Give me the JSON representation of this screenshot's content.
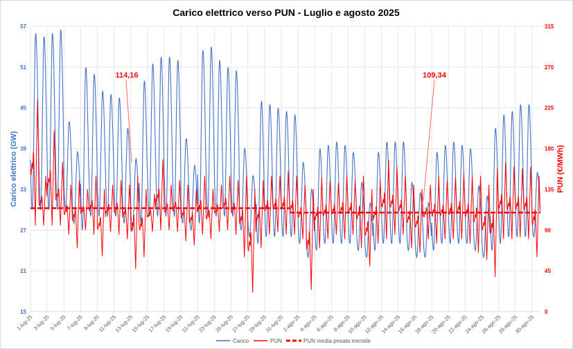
{
  "chart_data": {
    "type": "line",
    "title": "Carico elettrico verso PUN - Luglio e agosto 2025",
    "ylabel_left": "Carico elettrico (GW)",
    "ylabel_right": "PUN (€/MWh)",
    "ylim_left": [
      15,
      57
    ],
    "yticks_left": [
      15,
      21,
      27,
      33,
      39,
      45,
      51,
      57
    ],
    "ylim_right": [
      0,
      315
    ],
    "yticks_right": [
      0,
      45,
      90,
      135,
      180,
      225,
      270,
      315
    ],
    "grid": true,
    "legend_placement": "bottom",
    "x_tick_labels": [
      "1-lug-25",
      "3-lug-25",
      "5-lug-25",
      "7-lug-25",
      "9-lug-25",
      "11-lug-25",
      "13-lug-25",
      "15-lug-25",
      "17-lug-25",
      "19-lug-25",
      "21-lug-25",
      "23-lug-25",
      "25-lug-25",
      "27-lug-25",
      "29-lug-25",
      "31-lug-25",
      "2-ago-25",
      "4-ago-25",
      "6-ago-25",
      "8-ago-25",
      "10-ago-25",
      "12-ago-25",
      "14-ago-25",
      "16-ago-25",
      "18-ago-25",
      "20-ago-25",
      "22-ago-25",
      "24-ago-25",
      "26-ago-25",
      "28-ago-25",
      "30-ago-25"
    ],
    "series": [
      {
        "name": "Carico",
        "axis": "left",
        "color": "#4472C4",
        "daily_max": [
          56,
          55.5,
          56,
          56.5,
          43,
          38.5,
          51,
          50,
          47.5,
          47,
          46.5,
          42,
          37.5,
          49,
          51.5,
          52.5,
          52.5,
          52,
          40.5,
          36.5,
          53.5,
          54,
          52,
          51,
          50.5,
          39,
          35,
          46,
          45.5,
          45,
          44.5,
          44,
          37,
          33,
          39,
          39.5,
          40,
          39.5,
          38.5,
          34,
          31,
          38.5,
          40,
          40,
          40,
          34,
          32.5,
          31,
          38.5,
          39.5,
          40,
          39.5,
          39,
          33.5,
          32,
          42,
          44,
          44.5,
          45.5,
          45.5,
          35.5,
          33
        ],
        "daily_min": [
          30,
          30,
          30,
          30,
          30,
          28,
          27,
          29,
          29,
          29,
          29,
          28,
          27,
          28,
          29,
          29,
          29,
          29,
          28,
          27,
          28,
          29,
          29,
          29,
          29,
          27,
          26,
          25,
          26,
          26,
          26,
          26,
          25,
          23,
          24,
          25,
          25,
          25,
          25,
          24,
          23,
          24,
          25,
          25,
          25,
          24,
          23,
          23,
          24,
          25,
          25,
          25,
          25,
          24,
          23,
          24,
          25,
          26,
          26,
          26,
          26,
          25
        ]
      },
      {
        "name": "PUN",
        "axis": "right",
        "color": "#FF0000",
        "daily_max": [
          234,
          150,
          200,
          165,
          140,
          145,
          135,
          150,
          135,
          140,
          145,
          140,
          150,
          135,
          130,
          168,
          140,
          145,
          140,
          135,
          150,
          135,
          140,
          150,
          145,
          150,
          135,
          145,
          150,
          150,
          155,
          150,
          140,
          135,
          148,
          145,
          142,
          150,
          145,
          150,
          135,
          145,
          168,
          160,
          150,
          140,
          135,
          140,
          150,
          145,
          148,
          152,
          150,
          150,
          140,
          158,
          165,
          160,
          158,
          160,
          150,
          140
        ],
        "daily_min": [
          95,
          95,
          95,
          95,
          85,
          70,
          90,
          85,
          61,
          88,
          85,
          80,
          47,
          60,
          88,
          90,
          90,
          88,
          78,
          73,
          85,
          80,
          88,
          90,
          85,
          60,
          21,
          70,
          85,
          88,
          85,
          85,
          80,
          24,
          70,
          80,
          85,
          80,
          85,
          70,
          50,
          75,
          80,
          85,
          85,
          70,
          65,
          80,
          75,
          80,
          80,
          80,
          75,
          65,
          57,
          38,
          80,
          80,
          82,
          80,
          60,
          10
        ]
      },
      {
        "name": "PUN media pesata mensile",
        "axis": "right",
        "color": "#FF0000",
        "style": "dashed",
        "values": [
          {
            "period": "Luglio",
            "value": 114.16
          },
          {
            "period": "Agosto",
            "value": 109.34
          }
        ]
      }
    ],
    "annotations": [
      "114,16",
      "109,34"
    ]
  }
}
